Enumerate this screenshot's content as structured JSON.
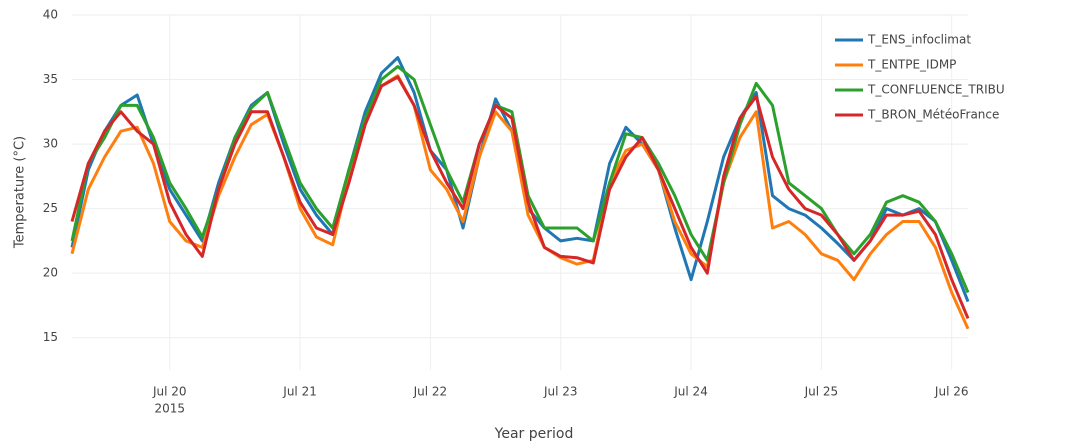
{
  "chart_data": {
    "type": "line",
    "x_label": "Year period",
    "y_label": "Temperature (°C)",
    "x": [
      19.25,
      19.375,
      19.5,
      19.625,
      19.75,
      19.875,
      20.0,
      20.125,
      20.25,
      20.375,
      20.5,
      20.625,
      20.75,
      20.875,
      21.0,
      21.125,
      21.25,
      21.375,
      21.5,
      21.625,
      21.75,
      21.875,
      22.0,
      22.125,
      22.25,
      22.375,
      22.5,
      22.625,
      22.75,
      22.875,
      23.0,
      23.125,
      23.25,
      23.375,
      23.5,
      23.625,
      23.75,
      23.875,
      24.0,
      24.125,
      24.25,
      24.375,
      24.5,
      24.625,
      24.75,
      24.875,
      25.0,
      25.125,
      25.25,
      25.375,
      25.5,
      25.625,
      25.75,
      25.875,
      26.0,
      26.125
    ],
    "xlim": [
      19.25,
      26.125
    ],
    "xticks": [
      {
        "value": 20,
        "label": "Jul 20"
      },
      {
        "value": 21,
        "label": "Jul 21"
      },
      {
        "value": 22,
        "label": "Jul 22"
      },
      {
        "value": 23,
        "label": "Jul 23"
      },
      {
        "value": 24,
        "label": "Jul 24"
      },
      {
        "value": 25,
        "label": "Jul 25"
      },
      {
        "value": 26,
        "label": "Jul 26"
      }
    ],
    "x_year_label": "2015",
    "ylim": [
      12.5,
      40
    ],
    "yticks": [
      15,
      20,
      25,
      30,
      35,
      40
    ],
    "grid": true,
    "legend_position": "top-right",
    "series": [
      {
        "name": "T_ENS_infoclimat",
        "color": "#1f77b4",
        "values": [
          22,
          28,
          31,
          33,
          33.8,
          30,
          26.5,
          24.5,
          22.5,
          27,
          30.5,
          33,
          34,
          30,
          26.5,
          24.5,
          23,
          28,
          32.5,
          35.5,
          36.7,
          34,
          29.5,
          28,
          23.5,
          29,
          33.5,
          31,
          25,
          23.5,
          22.5,
          22.7,
          22.5,
          28.5,
          31.3,
          30,
          28,
          23.5,
          19.5,
          24,
          29,
          32,
          34,
          26,
          25,
          24.5,
          23.5,
          22.3,
          21,
          22.5,
          25,
          24.5,
          25,
          24,
          21,
          17.8
        ]
      },
      {
        "name": "T_ENTPE_IDMP",
        "color": "#ff7f0e",
        "values": [
          21.5,
          26.5,
          29,
          31,
          31.3,
          28.5,
          24,
          22.5,
          22,
          26,
          29,
          31.5,
          32.3,
          29,
          25,
          22.8,
          22.2,
          27.5,
          32,
          34.5,
          35.3,
          33,
          28,
          26.5,
          24,
          29,
          32.5,
          31,
          24.5,
          22,
          21.2,
          20.7,
          21,
          27,
          29.5,
          30,
          28,
          24,
          21.5,
          20.5,
          27,
          30.5,
          32.5,
          23.5,
          24,
          23,
          21.5,
          21,
          19.5,
          21.5,
          23,
          24,
          24,
          22,
          18.5,
          15.7
        ]
      },
      {
        "name": "T_CONFLUENCE_TRIBU",
        "color": "#2ca02c",
        "values": [
          22.5,
          28.5,
          30.5,
          33,
          33,
          30.5,
          27,
          25,
          22.8,
          26.5,
          30.5,
          32.8,
          34,
          30.5,
          27,
          25,
          23.5,
          28,
          32,
          35,
          36,
          35,
          31.5,
          28,
          25.5,
          30,
          33,
          32.5,
          26,
          23.5,
          23.5,
          23.5,
          22.5,
          27,
          30.8,
          30.5,
          28.5,
          26,
          23,
          21,
          27,
          31.5,
          34.7,
          33,
          27,
          26,
          25,
          23,
          21.5,
          23,
          25.5,
          26,
          25.5,
          24,
          21.5,
          18.5
        ]
      },
      {
        "name": "T_BRON_MétéoFrance",
        "color": "#d62728",
        "values": [
          24,
          28.5,
          31,
          32.5,
          31,
          30,
          25.5,
          23,
          21.3,
          26.5,
          30,
          32.5,
          32.5,
          29,
          25.5,
          23.5,
          23,
          27,
          31.5,
          34.5,
          35.2,
          33,
          29.5,
          27,
          25,
          30,
          33,
          32,
          25.5,
          22,
          21.3,
          21.2,
          20.8,
          26.5,
          29,
          30.5,
          28,
          25,
          22,
          20,
          27.5,
          32,
          33.7,
          29,
          26.5,
          25,
          24.5,
          23,
          21,
          22.5,
          24.5,
          24.5,
          24.8,
          23,
          19.5,
          16.5
        ]
      }
    ]
  }
}
